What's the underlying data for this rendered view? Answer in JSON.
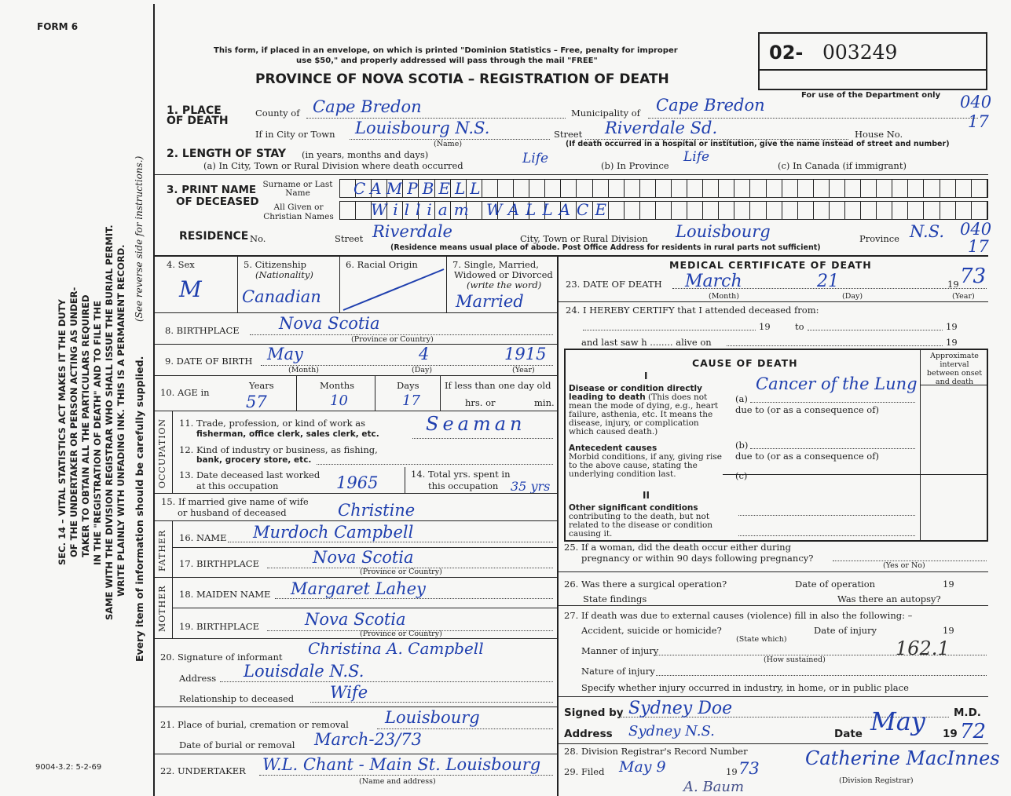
{
  "form_id": "FORM 6",
  "form_code": "9004-3.2: 5-2-69",
  "side_notice": {
    "lines": [
      "SEC. 14 – VITAL STATISTICS ACT MAKES IT THE DUTY",
      "OF THE UNDERTAKER OR PERSON ACTING AS UNDER-",
      "TAKER TO OBTAIN ALL THE PARTICULARS REQUIRED",
      "IN THE \"REGISTRATION OF DEATH\" AND TO FILE THE",
      "SAME WITH THE DIVISION REGISTRAR WHO SHALL ISSUE THE BURIAL PERMIT.",
      "WRITE PLAINLY WITH UNFADING INK. THIS IS A PERMANENT RECORD."
    ],
    "reverse": "(See reverse side for instructions.)",
    "every_item": "Every item of information should be carefully supplied."
  },
  "header": {
    "mail_notice_1": "This form, if placed in an envelope, on which is printed \"Dominion Statistics – Free, penalty for improper",
    "mail_notice_2": "use $50,\" and properly addressed will pass through the mail \"FREE\"",
    "title": "PROVINCE OF NOVA SCOTIA – REGISTRATION OF DEATH",
    "reg_prefix": "02-",
    "reg_number": "003249",
    "dept_only": "For use of the Department only",
    "dept_code_1": "040",
    "dept_code_2": "17",
    "dept_code_3": "040",
    "dept_code_4": "17"
  },
  "place": {
    "label": "1. PLACE OF DEATH",
    "county_label": "County of",
    "county": "Cape Bredon",
    "municipality_label": "Municipality of",
    "municipality": "Cape Bredon",
    "city_label": "If in City or Town",
    "city": "Louisbourg N.S.",
    "name_note": "(Name)",
    "street_label": "Street",
    "street": "Riverdale Sd.",
    "house_label": "House No.",
    "hospital_note": "(If death occurred in a hospital or institution, give the name instead of street and number)"
  },
  "stay": {
    "label": "2. LENGTH OF STAY",
    "sub": "(in years, months and days)",
    "a_label": "(a) In City, Town or Rural Division where death occurred",
    "a": "Life",
    "b_label": "(b) In Province",
    "b": "Life",
    "c_label": "(c) In Canada (if immigrant)"
  },
  "name": {
    "label_1": "3. PRINT NAME",
    "label_2": "OF DECEASED",
    "surname_label": "Surname or Last Name",
    "given_label": "All Given or Christian Names",
    "surname": "CAMPBELL",
    "given": "William WALLACE"
  },
  "residence": {
    "label": "RESIDENCE",
    "no_label": "No.",
    "street_label": "Street",
    "street": "Riverdale",
    "city_label": "City, Town or Rural Division",
    "city": "Louisbourg",
    "province_label": "Province",
    "province": "N.S.",
    "note": "(Residence means usual place of abode. Post Office Address for residents in rural parts not sufficient)"
  },
  "personal": {
    "sex_label": "4. Sex",
    "sex": "M",
    "citizenship_label": "5. Citizenship",
    "citizenship_sub": "(Nationality)",
    "citizenship": "Canadian",
    "racial_label": "6. Racial Origin",
    "marital_label_1": "7. Single, Married,",
    "marital_label_2": "Widowed or Divorced",
    "marital_label_3": "(write the word)",
    "marital": "Married",
    "birthplace_label": "8. BIRTHPLACE",
    "birthplace": "Nova Scotia",
    "province_note": "(Province or Country)",
    "dob_label": "9. DATE OF BIRTH",
    "dob_month": "May",
    "dob_day": "4",
    "dob_year": "1915",
    "month_note": "(Month)",
    "day_note": "(Day)",
    "year_note": "(Year)",
    "age_label": "10. AGE in",
    "years_label": "Years",
    "years": "57",
    "months_label": "Months",
    "months": "10",
    "days_label": "Days",
    "days": "17",
    "less_label": "If less than one day old",
    "hrs_label": "hrs. or",
    "min_label": "min."
  },
  "occupation": {
    "section": "OCCUPATION",
    "trade_label_1": "11. Trade, profession, or kind of work as",
    "trade_label_2": "fisherman, office clerk, sales clerk, etc.",
    "trade": "Seaman",
    "industry_label_1": "12. Kind of industry or business, as fishing,",
    "industry_label_2": "bank, grocery store, etc.",
    "last_worked_label_1": "13. Date deceased last worked",
    "last_worked_label_2": "at this occupation",
    "last_worked": "1965",
    "total_label_1": "14. Total yrs. spent in",
    "total_label_2": "this occupation",
    "total": "35 yrs"
  },
  "spouse": {
    "label_1": "15. If married give name of wife",
    "label_2": "or husband of deceased",
    "name": "Christine"
  },
  "father": {
    "section": "FATHER",
    "name_label": "16. NAME",
    "name": "Murdoch Campbell",
    "birthplace_label": "17. BIRTHPLACE",
    "birthplace": "Nova Scotia"
  },
  "mother": {
    "section": "MOTHER",
    "maiden_label": "18. MAIDEN NAME",
    "maiden": "Margaret Lahey",
    "birthplace_label": "19. BIRTHPLACE",
    "birthplace": "Nova Scotia"
  },
  "informant": {
    "sig_label": "20. Signature of informant",
    "signature": "Christina A. Campbell",
    "address_label": "Address",
    "address": "Louisdale N.S.",
    "relationship_label": "Relationship to deceased",
    "relationship": "Wife"
  },
  "burial": {
    "place_label": "21. Place of burial, cremation or removal",
    "place": "Louisbourg",
    "date_label": "Date of burial or removal",
    "date": "March-23/73"
  },
  "undertaker": {
    "label": "22. UNDERTAKER",
    "value": "W.L. Chant - Main St. Louisbourg",
    "note": "(Name and address)"
  },
  "medical": {
    "title": "MEDICAL CERTIFICATE OF DEATH",
    "dod_label": "23. DATE OF DEATH",
    "dod_month": "March",
    "dod_day": "21",
    "dod_year_prefix": "19",
    "dod_year": "73",
    "certify_label": "24. I HEREBY CERTIFY that I attended deceased from:",
    "nineteen": "19",
    "to": "to",
    "last_saw": "and last saw h ........ alive on",
    "cause_title": "CAUSE OF DEATH",
    "interval": "Approximate interval between onset and death",
    "part1": "I",
    "part1_label": "Disease or condition directly leading to death",
    "part1_note": "(This does not mean the mode of dying, e.g., heart failure, asthenia, etc. It means the disease, injury, or complication which caused death.)",
    "antecedent_label": "Antecedent causes",
    "antecedent_note": "Morbid conditions, if any, giving rise to the above cause, stating the underlying condition last.",
    "a": "(a)",
    "b": "(b)",
    "c": "(c)",
    "due_to": "due to (or as a consequence of)",
    "cause": "Cancer of the Lung",
    "part2": "II",
    "part2_label": "Other significant conditions",
    "part2_note": "contributing to the death, but not related to the disease or condition causing it.",
    "q25_1": "25. If a woman, did the death occur either during",
    "q25_2": "pregnancy or within 90 days following pregnancy?",
    "yes_no": "(Yes or No)",
    "q26": "26. Was there a surgical operation?",
    "op_date": "Date of operation",
    "findings": "State findings",
    "autopsy": "Was there an autopsy?",
    "q27": "27. If death was due to external causes (violence) fill in also the following: –",
    "accident": "Accident, suicide or homicide?",
    "state_which": "(State which)",
    "injury_date": "Date of injury",
    "manner": "Manner of injury",
    "how": "(How sustained)",
    "code": "162.1",
    "nature": "Nature of injury",
    "specify": "Specify whether injury occurred in industry, in home, or in public place",
    "signed_label": "Signed by",
    "md": "M.D.",
    "signature": "Sydney Doe",
    "address_label": "Address",
    "address": "Sydney N.S.",
    "date_label": "Date",
    "date": "May",
    "year_prefix": "19",
    "year": "72",
    "q28": "28. Division Registrar's Record Number",
    "q29": "29. Filed",
    "filed": "May 9",
    "filed_year_prefix": "19",
    "filed_year": "73",
    "registrar_sig": "Catherine MacInnes",
    "registrar": "(Division Registrar)",
    "stamp_name": "A. Baum"
  },
  "colors": {
    "ink": "#1f3fae",
    "paper": "#f7f7f5",
    "print": "#1e1e1e"
  }
}
